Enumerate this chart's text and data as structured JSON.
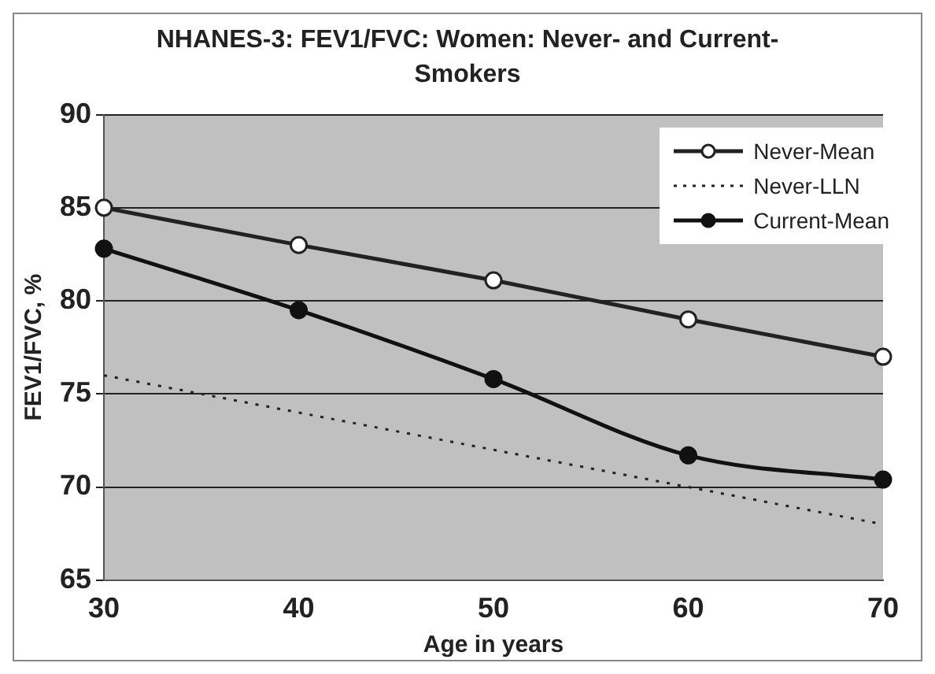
{
  "chart_data": {
    "type": "line",
    "title": "NHANES-3: FEV1/FVC: Women: Never- and Current-Smokers",
    "xlabel": "Age in years",
    "ylabel": "FEV1/FVC, %",
    "x": [
      30,
      40,
      50,
      60,
      70
    ],
    "series": [
      {
        "name": "Never-Mean",
        "color": "#222222",
        "values": [
          85,
          83,
          81.1,
          79,
          77
        ],
        "marker": "circle",
        "line_style": "solid"
      },
      {
        "name": "Never-LLN",
        "color": "#222222",
        "values": [
          76,
          74,
          72,
          70,
          68
        ],
        "marker": "none",
        "line_style": "dotted"
      },
      {
        "name": "Current-Mean",
        "color": "#111111",
        "values": [
          82.8,
          79.5,
          75.8,
          71.7,
          70.4
        ],
        "marker": "circle",
        "line_style": "solid"
      }
    ],
    "xlim": [
      30,
      70
    ],
    "xticks": [
      30,
      40,
      50,
      60,
      70
    ],
    "ylim": [
      65,
      90
    ],
    "yticks": [
      65,
      70,
      75,
      80,
      85,
      90
    ],
    "grid": "y",
    "legend": "top right"
  }
}
